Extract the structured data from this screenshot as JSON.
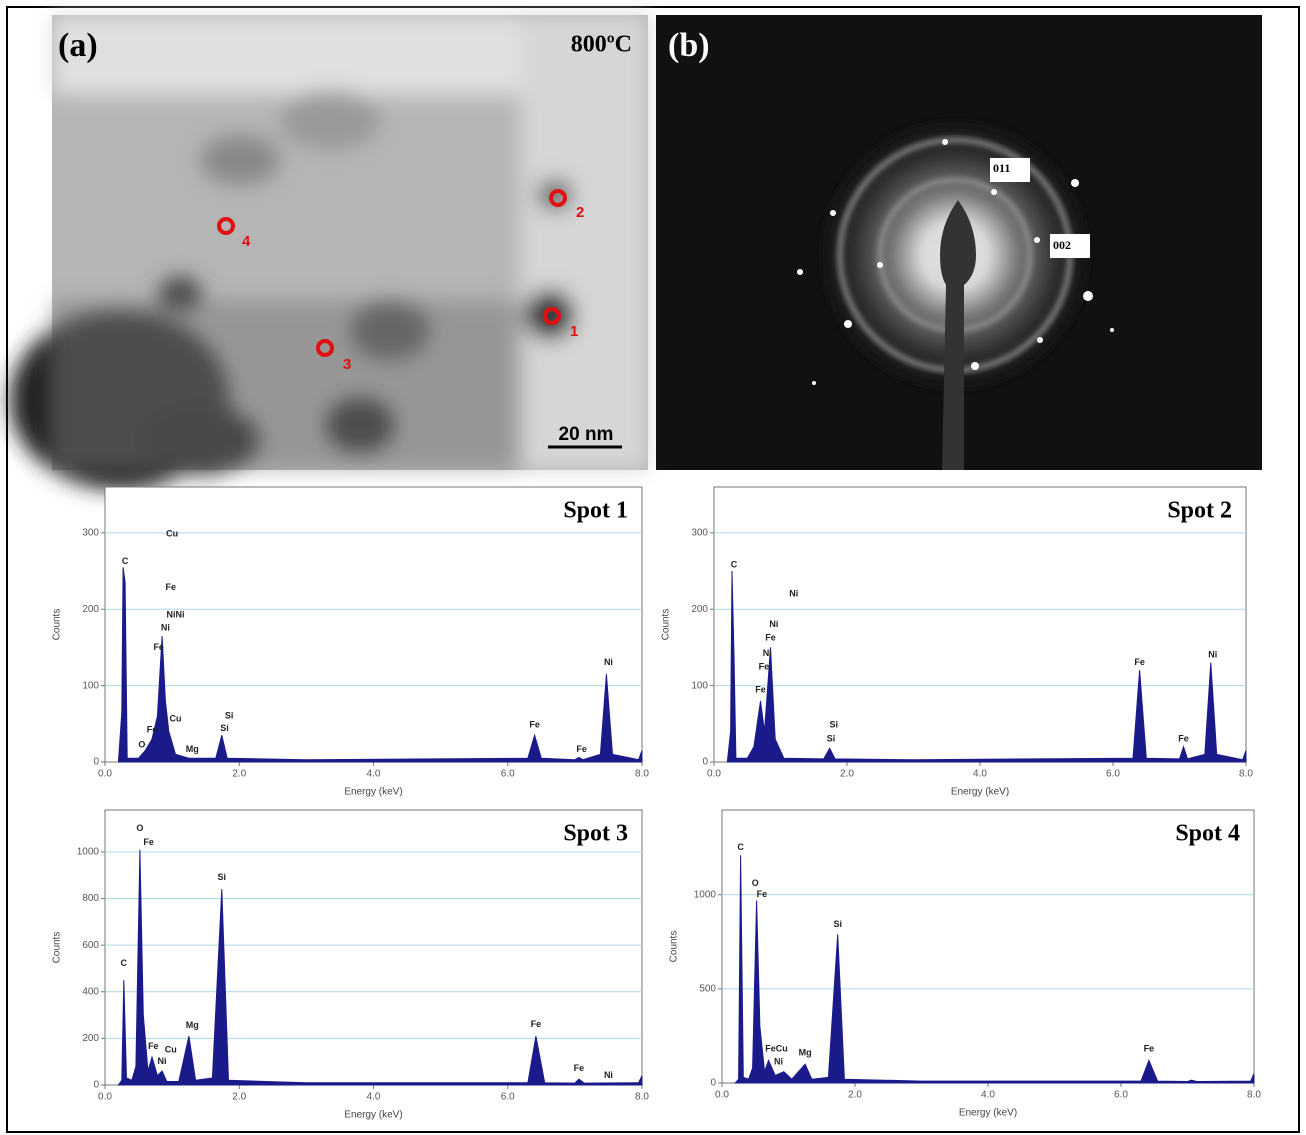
{
  "panels": {
    "a": {
      "label": "(a)",
      "temperature": "800ºC",
      "scale_bar": "20 nm",
      "spots": [
        "1",
        "2",
        "3",
        "4"
      ]
    },
    "b": {
      "label": "(b)",
      "rings": [
        "011",
        "002"
      ]
    }
  },
  "chart_data": [
    {
      "type": "area",
      "title": "Spot 1",
      "x_label": "Energy (keV)",
      "y_label": "Counts",
      "color": "#1a1a8a",
      "grid": true,
      "grid_color": "#a9d9e6",
      "xlim": [
        0,
        8
      ],
      "ylim": [
        0,
        360
      ],
      "xticks": [
        {
          "value": 0,
          "label": "0.0"
        },
        {
          "value": 2,
          "label": "2.0"
        },
        {
          "value": 4,
          "label": "4.0"
        },
        {
          "value": 6,
          "label": "6.0"
        },
        {
          "value": 8,
          "label": "8.0"
        }
      ],
      "yticks": [
        0,
        100,
        200,
        300
      ],
      "x": [
        0.2,
        0.25,
        0.27,
        0.3,
        0.33,
        0.5,
        0.6,
        0.7,
        0.78,
        0.85,
        0.9,
        0.95,
        1.05,
        1.25,
        1.65,
        1.74,
        1.82,
        3.0,
        6.3,
        6.4,
        6.5,
        7.0,
        7.06,
        7.12,
        7.38,
        7.47,
        7.56,
        7.95,
        8.0
      ],
      "values": [
        0,
        65,
        255,
        235,
        5,
        5,
        15,
        30,
        60,
        165,
        80,
        40,
        10,
        5,
        5,
        35,
        5,
        3,
        5,
        35,
        5,
        3,
        6,
        3,
        10,
        115,
        10,
        3,
        15
      ],
      "annotations": [
        {
          "text": "C",
          "x": 0.3,
          "y": 262
        },
        {
          "text": "Cu",
          "x": 1.0,
          "y": 298
        },
        {
          "text": "Fe",
          "x": 0.98,
          "y": 228
        },
        {
          "text": "NiNi",
          "x": 1.05,
          "y": 192
        },
        {
          "text": "Ni",
          "x": 0.9,
          "y": 175
        },
        {
          "text": "Fe",
          "x": 0.8,
          "y": 150
        },
        {
          "text": "Fe",
          "x": 0.7,
          "y": 42
        },
        {
          "text": "O",
          "x": 0.55,
          "y": 22
        },
        {
          "text": "Cu",
          "x": 1.05,
          "y": 56
        },
        {
          "text": "Mg",
          "x": 1.3,
          "y": 16
        },
        {
          "text": "Si",
          "x": 1.85,
          "y": 60
        },
        {
          "text": "Si",
          "x": 1.78,
          "y": 44
        },
        {
          "text": "Fe",
          "x": 6.4,
          "y": 48
        },
        {
          "text": "Fe",
          "x": 7.1,
          "y": 16
        },
        {
          "text": "Ni",
          "x": 7.5,
          "y": 130
        }
      ]
    },
    {
      "type": "area",
      "title": "Spot 2",
      "x_label": "Energy (keV)",
      "y_label": "Counts",
      "color": "#1a1a8a",
      "grid": true,
      "grid_color": "#a9d9e6",
      "xlim": [
        0,
        8
      ],
      "ylim": [
        0,
        360
      ],
      "xticks": [
        {
          "value": 0,
          "label": "0.0"
        },
        {
          "value": 2,
          "label": "2.0"
        },
        {
          "value": 4,
          "label": "4.0"
        },
        {
          "value": 6,
          "label": "6.0"
        },
        {
          "value": 8,
          "label": "8.0"
        }
      ],
      "yticks": [
        0,
        100,
        200,
        300
      ],
      "x": [
        0.2,
        0.25,
        0.27,
        0.3,
        0.33,
        0.5,
        0.6,
        0.7,
        0.76,
        0.85,
        0.92,
        1.05,
        1.65,
        1.74,
        1.82,
        3.0,
        6.3,
        6.4,
        6.5,
        7.0,
        7.06,
        7.12,
        7.38,
        7.47,
        7.56,
        7.95,
        8.0
      ],
      "values": [
        0,
        40,
        250,
        140,
        5,
        5,
        20,
        80,
        40,
        150,
        30,
        5,
        4,
        18,
        4,
        3,
        5,
        120,
        5,
        4,
        20,
        4,
        10,
        130,
        10,
        3,
        15
      ],
      "annotations": [
        {
          "text": "C",
          "x": 0.3,
          "y": 258
        },
        {
          "text": "Ni",
          "x": 1.2,
          "y": 220
        },
        {
          "text": "Ni",
          "x": 0.9,
          "y": 180
        },
        {
          "text": "Fe",
          "x": 0.85,
          "y": 162
        },
        {
          "text": "Ni",
          "x": 0.8,
          "y": 142
        },
        {
          "text": "Fe",
          "x": 0.75,
          "y": 124
        },
        {
          "text": "Fe",
          "x": 0.7,
          "y": 94
        },
        {
          "text": "Si",
          "x": 1.8,
          "y": 48
        },
        {
          "text": "Si",
          "x": 1.76,
          "y": 30
        },
        {
          "text": "Fe",
          "x": 6.4,
          "y": 130
        },
        {
          "text": "Fe",
          "x": 7.06,
          "y": 30
        },
        {
          "text": "Ni",
          "x": 7.5,
          "y": 140
        }
      ]
    },
    {
      "type": "area",
      "title": "Spot 3",
      "x_label": "Energy (keV)",
      "y_label": "Counts",
      "color": "#1a1a8a",
      "grid": true,
      "grid_color": "#a9d9e6",
      "xlim": [
        0,
        8
      ],
      "ylim": [
        0,
        1180
      ],
      "xticks": [
        {
          "value": 0,
          "label": "0.0"
        },
        {
          "value": 2,
          "label": "2.0"
        },
        {
          "value": 4,
          "label": "4.0"
        },
        {
          "value": 6,
          "label": "6.0"
        },
        {
          "value": 8,
          "label": "8.0"
        }
      ],
      "yticks": [
        0,
        200,
        400,
        600,
        800,
        1000
      ],
      "x": [
        0.2,
        0.25,
        0.28,
        0.32,
        0.4,
        0.46,
        0.52,
        0.57,
        0.64,
        0.7,
        0.78,
        0.85,
        0.92,
        1.1,
        1.25,
        1.35,
        1.6,
        1.74,
        1.84,
        3.0,
        6.3,
        6.42,
        6.55,
        7.0,
        7.06,
        7.14,
        7.95,
        8.0
      ],
      "values": [
        0,
        20,
        450,
        30,
        20,
        80,
        1010,
        300,
        60,
        120,
        40,
        60,
        15,
        15,
        210,
        20,
        30,
        840,
        20,
        10,
        10,
        210,
        10,
        8,
        25,
        8,
        10,
        40
      ],
      "annotations": [
        {
          "text": "O",
          "x": 0.52,
          "y": 1100
        },
        {
          "text": "Fe",
          "x": 0.65,
          "y": 1040
        },
        {
          "text": "C",
          "x": 0.28,
          "y": 520
        },
        {
          "text": "Fe",
          "x": 0.72,
          "y": 165
        },
        {
          "text": "Cu",
          "x": 0.98,
          "y": 150
        },
        {
          "text": "Ni",
          "x": 0.85,
          "y": 100
        },
        {
          "text": "Mg",
          "x": 1.3,
          "y": 255
        },
        {
          "text": "Si",
          "x": 1.74,
          "y": 890
        },
        {
          "text": "Fe",
          "x": 6.42,
          "y": 260
        },
        {
          "text": "Fe",
          "x": 7.06,
          "y": 70
        },
        {
          "text": "Ni",
          "x": 7.5,
          "y": 40
        }
      ]
    },
    {
      "type": "area",
      "title": "Spot 4",
      "x_label": "Energy (keV)",
      "y_label": "Counts",
      "color": "#1a1a8a",
      "grid": true,
      "grid_color": "#a9d9e6",
      "xlim": [
        0,
        8
      ],
      "ylim": [
        0,
        1450
      ],
      "xticks": [
        {
          "value": 0,
          "label": "0.0"
        },
        {
          "value": 2,
          "label": "2.0"
        },
        {
          "value": 4,
          "label": "4.0"
        },
        {
          "value": 6,
          "label": "6.0"
        },
        {
          "value": 8,
          "label": "8.0"
        }
      ],
      "yticks": [
        0,
        500,
        1000
      ],
      "x": [
        0.2,
        0.25,
        0.28,
        0.32,
        0.4,
        0.46,
        0.52,
        0.57,
        0.64,
        0.7,
        0.8,
        0.93,
        1.05,
        1.25,
        1.35,
        1.6,
        1.74,
        1.84,
        3.0,
        6.3,
        6.42,
        6.55,
        7.0,
        7.06,
        7.14,
        7.95,
        8.0
      ],
      "values": [
        0,
        20,
        1210,
        30,
        20,
        80,
        970,
        300,
        60,
        120,
        40,
        60,
        20,
        100,
        20,
        30,
        790,
        20,
        10,
        10,
        120,
        10,
        8,
        15,
        8,
        10,
        50
      ],
      "annotations": [
        {
          "text": "C",
          "x": 0.28,
          "y": 1250
        },
        {
          "text": "O",
          "x": 0.5,
          "y": 1060
        },
        {
          "text": "Fe",
          "x": 0.6,
          "y": 1000
        },
        {
          "text": "FeCu",
          "x": 0.82,
          "y": 180
        },
        {
          "text": "Ni",
          "x": 0.85,
          "y": 110
        },
        {
          "text": "Mg",
          "x": 1.25,
          "y": 160
        },
        {
          "text": "Si",
          "x": 1.74,
          "y": 840
        },
        {
          "text": "Fe",
          "x": 6.42,
          "y": 180
        }
      ]
    }
  ]
}
